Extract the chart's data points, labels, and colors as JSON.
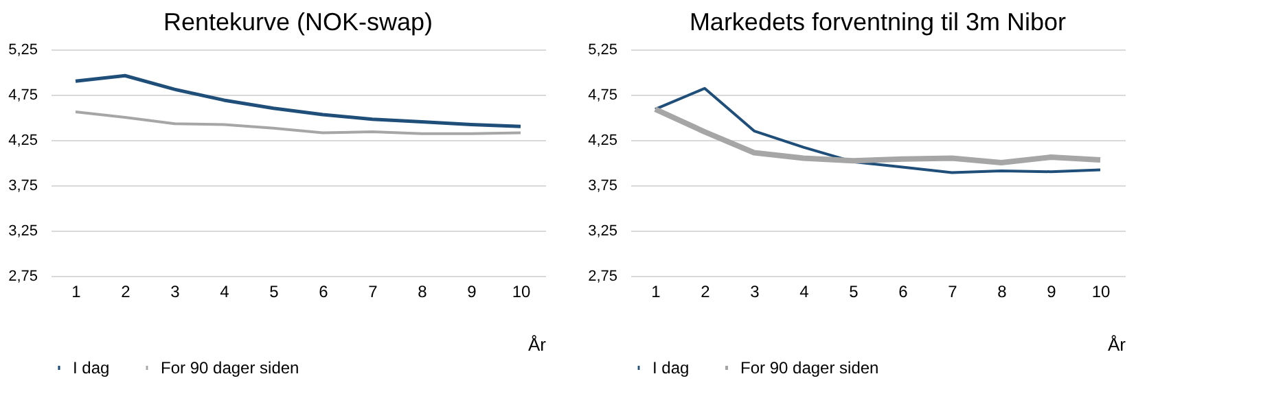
{
  "chart_data": [
    {
      "type": "line",
      "title": "Rentekurve (NOK-swap)",
      "xlabel": "År",
      "categories": [
        "1",
        "2",
        "3",
        "4",
        "5",
        "6",
        "7",
        "8",
        "9",
        "10"
      ],
      "series": [
        {
          "name": "I dag",
          "color": "#1f4e79",
          "values": [
            4.9,
            4.96,
            4.81,
            4.69,
            4.6,
            4.53,
            4.48,
            4.45,
            4.42,
            4.4
          ]
        },
        {
          "name": "For 90 dager siden",
          "color": "#a6a6a6",
          "values": [
            4.56,
            4.5,
            4.43,
            4.42,
            4.38,
            4.33,
            4.34,
            4.32,
            4.32,
            4.33
          ]
        }
      ],
      "ylim": [
        2.75,
        5.25
      ],
      "yticks": [
        {
          "value": 2.75,
          "label": "2,75"
        },
        {
          "value": 3.25,
          "label": "3,25"
        },
        {
          "value": 3.75,
          "label": "3,75"
        },
        {
          "value": 4.25,
          "label": "4,25"
        },
        {
          "value": 4.75,
          "label": "4,75"
        },
        {
          "value": 5.25,
          "label": "5,25"
        }
      ],
      "grid": "y",
      "legend": "bottom",
      "marker": "none",
      "line_style": "solid"
    },
    {
      "type": "line",
      "title": "Markedets forventning til 3m Nibor",
      "xlabel": "År",
      "categories": [
        "1",
        "2",
        "3",
        "4",
        "5",
        "6",
        "7",
        "8",
        "9",
        "10"
      ],
      "series": [
        {
          "name": "I dag",
          "color": "#1f4e79",
          "values": [
            4.59,
            4.82,
            4.35,
            4.17,
            4.01,
            3.95,
            3.89,
            3.91,
            3.9,
            3.92
          ]
        },
        {
          "name": "For 90 dager siden",
          "color": "#a6a6a6",
          "values": [
            4.59,
            4.34,
            4.11,
            4.05,
            4.02,
            4.04,
            4.05,
            4.0,
            4.06,
            4.03
          ]
        }
      ],
      "ylim": [
        2.75,
        5.25
      ],
      "yticks": [
        {
          "value": 2.75,
          "label": "2,75"
        },
        {
          "value": 3.25,
          "label": "3,25"
        },
        {
          "value": 3.75,
          "label": "3,75"
        },
        {
          "value": 4.25,
          "label": "4,25"
        },
        {
          "value": 4.75,
          "label": "4,75"
        },
        {
          "value": 5.25,
          "label": "5,25"
        }
      ],
      "grid": "y",
      "legend": "bottom",
      "marker": "none",
      "line_style": "solid"
    }
  ]
}
